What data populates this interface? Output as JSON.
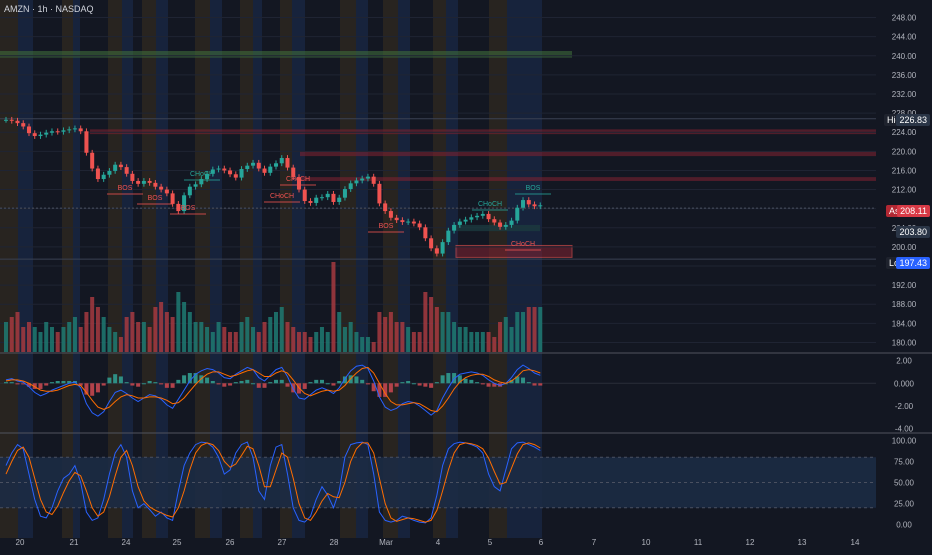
{
  "symbol_title": "AMZN · 1h · NASDAQ",
  "tags": {
    "high_label": "High",
    "high_value": "226.83",
    "ask_label": "Ask",
    "ask_value": "208.11",
    "mid_value": "203.80",
    "low_label": "Low",
    "low_value": "197.43"
  },
  "colors": {
    "background": "#131722",
    "up": "#26a69a",
    "down": "#ef5350",
    "macd_line": "#2962ff",
    "signal_line": "#ff6d00",
    "session_blue": "#1c2d52",
    "session_orange": "#3a2f1f"
  },
  "chart_data": [
    {
      "type": "line",
      "name": "price",
      "y_ticks": [
        "248.00",
        "244.00",
        "240.00",
        "236.00",
        "232.00",
        "228.00",
        "224.00",
        "220.00",
        "216.00",
        "212.00",
        "208.00",
        "204.00",
        "200.00",
        "196.00",
        "192.00",
        "188.00",
        "184.00",
        "180.00"
      ],
      "ylim": [
        178,
        250
      ],
      "x_ticks": [
        "20",
        "21",
        "24",
        "25",
        "26",
        "27",
        "28",
        "Mar",
        "4",
        "5",
        "6",
        "7",
        "10",
        "11",
        "12",
        "13",
        "14"
      ],
      "close": [
        226.6,
        226.4,
        225.9,
        225.2,
        223.8,
        223.2,
        223.5,
        223.9,
        224.2,
        224.1,
        224.4,
        224.6,
        224.8,
        224.2,
        219.7,
        216.4,
        214.2,
        215.1,
        215.9,
        217.2,
        216.7,
        215.3,
        213.8,
        213.2,
        213.8,
        213.4,
        212.6,
        212.0,
        211.2,
        209.0,
        207.5,
        210.8,
        212.6,
        213.1,
        214.2,
        215.3,
        216.2,
        216.4,
        216.0,
        215.2,
        214.5,
        216.3,
        217.0,
        217.6,
        216.4,
        215.5,
        216.8,
        217.5,
        218.6,
        216.6,
        214.6,
        212.0,
        209.6,
        209.2,
        210.3,
        210.4,
        211.1,
        209.4,
        210.3,
        212.1,
        213.3,
        213.9,
        214.3,
        214.7,
        213.2,
        209.1,
        207.5,
        206.1,
        205.6,
        205.2,
        205.3,
        204.9,
        204.1,
        201.8,
        199.7,
        198.6,
        201.0,
        203.4,
        204.6,
        205.3,
        205.7,
        206.2,
        206.5,
        206.9,
        205.8,
        205.1,
        204.2,
        204.6,
        205.5,
        208.2,
        209.8,
        208.9,
        208.5,
        208.7
      ],
      "levels": [
        {
          "label": "BOS",
          "price": 213.0
        },
        {
          "label": "BOS",
          "price": 210.5
        },
        {
          "label": "BOS",
          "price": 208.5
        },
        {
          "label": "CHoCH",
          "price": 213.5
        },
        {
          "label": "CHoCH",
          "price": 210.5
        },
        {
          "label": "CHoCH",
          "price": 214.5
        },
        {
          "label": "BOS",
          "price": 207.0
        },
        {
          "label": "CHoCH",
          "price": 207.5
        },
        {
          "label": "BOS",
          "price": 212.0
        },
        {
          "label": "CHoCH",
          "price": 200.2
        }
      ],
      "zones": [
        {
          "from": 241.0,
          "to": 239.6,
          "kind": "supply_green"
        },
        {
          "from": 224.6,
          "to": 223.6,
          "kind": "supply_red"
        },
        {
          "from": 220.0,
          "to": 219.0,
          "kind": "supply_red"
        },
        {
          "from": 214.6,
          "to": 213.8,
          "kind": "supply_red"
        },
        {
          "from": 200.3,
          "to": 197.8,
          "kind": "demand_red_box"
        }
      ]
    },
    {
      "type": "bar",
      "name": "volume",
      "values": [
        6,
        7,
        8,
        5,
        6,
        5,
        4,
        6,
        5,
        4,
        5,
        6,
        7,
        5,
        8,
        11,
        9,
        7,
        5,
        4,
        3,
        7,
        8,
        6,
        6,
        5,
        9,
        10,
        8,
        7,
        12,
        10,
        8,
        6,
        6,
        5,
        4,
        6,
        5,
        4,
        4,
        6,
        7,
        5,
        4,
        6,
        7,
        8,
        9,
        6,
        5,
        4,
        4,
        3,
        4,
        5,
        4,
        18,
        8,
        5,
        6,
        4,
        3,
        3,
        2,
        8,
        7,
        8,
        6,
        6,
        5,
        4,
        4,
        12,
        11,
        9,
        8,
        8,
        6,
        5,
        5,
        4,
        4,
        4,
        4,
        3,
        6,
        7,
        5,
        8,
        8,
        9,
        9,
        9
      ],
      "up_flags": [
        1,
        0,
        0,
        0,
        0,
        1,
        1,
        1,
        1,
        0,
        1,
        1,
        1,
        0,
        0,
        0,
        0,
        1,
        1,
        1,
        0,
        0,
        0,
        0,
        1,
        0,
        0,
        0,
        0,
        0,
        1,
        1,
        1,
        1,
        1,
        1,
        1,
        1,
        0,
        0,
        0,
        1,
        1,
        1,
        0,
        0,
        1,
        1,
        1,
        0,
        0,
        0,
        0,
        0,
        1,
        1,
        1,
        0,
        1,
        1,
        1,
        1,
        1,
        1,
        0,
        0,
        0,
        0,
        0,
        0,
        1,
        0,
        0,
        0,
        0,
        0,
        1,
        1,
        1,
        1,
        1,
        1,
        1,
        1,
        0,
        0,
        0,
        1,
        1,
        1,
        1,
        0,
        0,
        1
      ]
    },
    {
      "type": "line",
      "name": "macd",
      "y_ticks": [
        "2.00",
        "0.000",
        "-2.00",
        "-4.00"
      ],
      "ylim": [
        -4.2,
        2.4
      ],
      "macd": [
        0.3,
        0.4,
        0.2,
        0.1,
        -0.3,
        -0.8,
        -1.1,
        -0.9,
        -0.6,
        -0.4,
        -0.2,
        0.0,
        0.1,
        -0.4,
        -1.8,
        -2.6,
        -2.9,
        -2.5,
        -1.6,
        -0.8,
        -0.6,
        -0.9,
        -1.3,
        -1.6,
        -1.3,
        -1.0,
        -1.1,
        -1.4,
        -1.9,
        -2.2,
        -1.4,
        -0.6,
        0.2,
        0.8,
        1.1,
        1.3,
        1.2,
        0.9,
        0.5,
        0.4,
        0.8,
        1.1,
        1.4,
        1.2,
        0.5,
        0.2,
        0.7,
        1.2,
        1.4,
        0.6,
        -0.5,
        -1.3,
        -1.4,
        -1.0,
        -0.6,
        -0.4,
        -0.6,
        -0.9,
        -0.4,
        0.4,
        1.1,
        1.5,
        1.6,
        1.3,
        0.2,
        -1.2,
        -2.1,
        -2.4,
        -2.2,
        -1.8,
        -1.6,
        -1.7,
        -2.0,
        -2.4,
        -2.8,
        -2.4,
        -1.3,
        -0.4,
        0.4,
        0.8,
        0.9,
        1.0,
        0.9,
        0.7,
        0.3,
        0.0,
        -0.2,
        0.0,
        0.5,
        1.2,
        1.6,
        1.3,
        0.9,
        0.7
      ],
      "signal": [
        0.2,
        0.3,
        0.3,
        0.2,
        0.0,
        -0.3,
        -0.6,
        -0.7,
        -0.7,
        -0.6,
        -0.4,
        -0.2,
        -0.1,
        -0.2,
        -0.8,
        -1.5,
        -2.1,
        -2.3,
        -2.1,
        -1.6,
        -1.2,
        -1.0,
        -1.1,
        -1.3,
        -1.3,
        -1.2,
        -1.2,
        -1.3,
        -1.5,
        -1.8,
        -1.7,
        -1.3,
        -0.7,
        -0.1,
        0.4,
        0.8,
        1.0,
        1.0,
        0.8,
        0.6,
        0.7,
        0.9,
        1.1,
        1.2,
        0.9,
        0.6,
        0.6,
        0.9,
        1.1,
        0.9,
        0.3,
        -0.4,
        -0.9,
        -1.1,
        -0.9,
        -0.7,
        -0.6,
        -0.7,
        -0.6,
        -0.2,
        0.4,
        0.9,
        1.3,
        1.4,
        0.9,
        0.0,
        -0.9,
        -1.6,
        -1.9,
        -1.9,
        -1.8,
        -1.7,
        -1.8,
        -2.1,
        -2.4,
        -2.5,
        -2.0,
        -1.3,
        -0.5,
        0.1,
        0.5,
        0.7,
        0.8,
        0.8,
        0.6,
        0.3,
        0.1,
        0.0,
        0.2,
        0.6,
        1.1,
        1.2,
        1.1,
        0.9
      ]
    },
    {
      "type": "line",
      "name": "stochastic",
      "y_ticks": [
        "100.00",
        "75.00",
        "50.00",
        "25.00",
        "0.00"
      ],
      "ylim": [
        -4,
        104
      ],
      "band": [
        20,
        80
      ],
      "k": [
        70,
        85,
        95,
        90,
        60,
        30,
        10,
        8,
        20,
        40,
        55,
        60,
        70,
        50,
        15,
        5,
        8,
        30,
        60,
        85,
        95,
        80,
        40,
        20,
        25,
        18,
        10,
        15,
        8,
        5,
        40,
        70,
        85,
        95,
        98,
        97,
        92,
        80,
        60,
        65,
        85,
        95,
        98,
        80,
        40,
        30,
        70,
        92,
        95,
        60,
        20,
        5,
        3,
        10,
        30,
        45,
        35,
        20,
        40,
        80,
        95,
        97,
        98,
        95,
        60,
        15,
        5,
        3,
        5,
        10,
        8,
        5,
        3,
        2,
        8,
        35,
        70,
        90,
        96,
        98,
        97,
        95,
        92,
        85,
        60,
        45,
        40,
        65,
        90,
        97,
        98,
        95,
        92,
        88
      ],
      "d": [
        60,
        75,
        88,
        92,
        80,
        55,
        30,
        15,
        12,
        22,
        38,
        52,
        62,
        58,
        40,
        20,
        10,
        15,
        33,
        58,
        80,
        88,
        70,
        45,
        28,
        21,
        17,
        14,
        11,
        9,
        20,
        40,
        65,
        85,
        94,
        97,
        95,
        88,
        75,
        68,
        72,
        82,
        93,
        90,
        70,
        45,
        45,
        65,
        85,
        80,
        55,
        25,
        8,
        5,
        15,
        28,
        37,
        33,
        32,
        50,
        75,
        90,
        97,
        97,
        85,
        55,
        25,
        8,
        4,
        6,
        8,
        7,
        5,
        3,
        5,
        17,
        40,
        65,
        85,
        95,
        97,
        96,
        94,
        90,
        79,
        63,
        48,
        50,
        67,
        84,
        95,
        97,
        95,
        91
      ]
    }
  ]
}
